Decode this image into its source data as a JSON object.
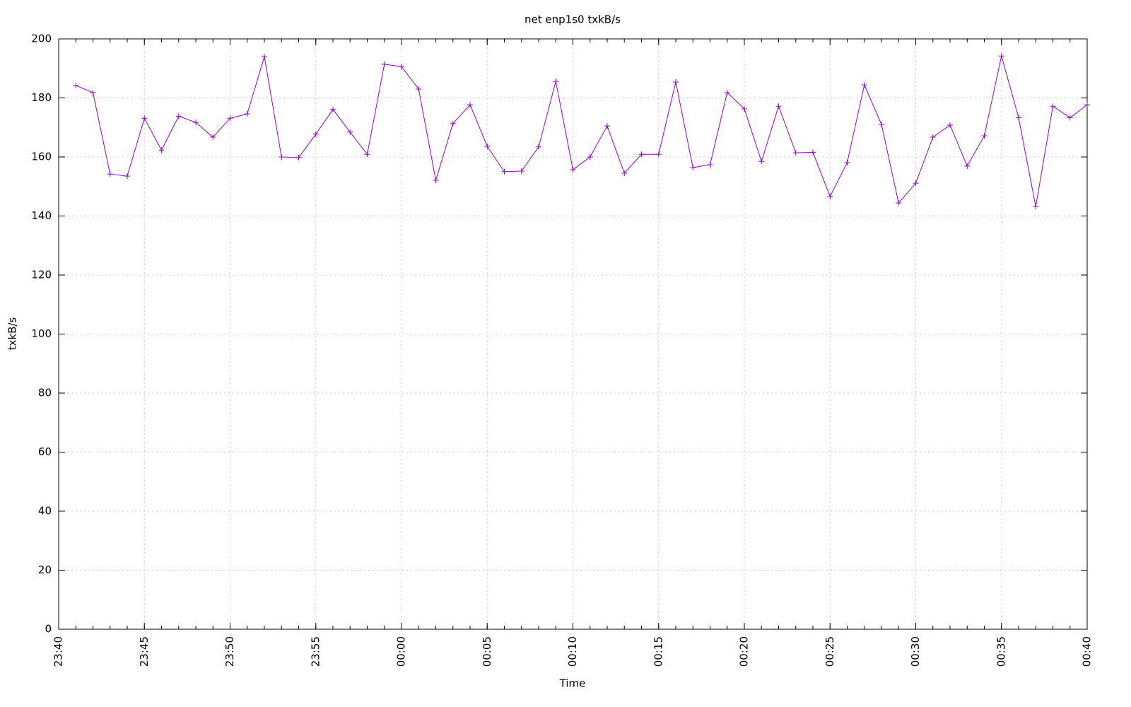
{
  "chart_data": {
    "type": "line",
    "title": "net enp1s0 txkB/s",
    "xlabel": "Time",
    "ylabel": "txkB/s",
    "x": [
      "23:41",
      "23:42",
      "23:43",
      "23:44",
      "23:45",
      "23:46",
      "23:47",
      "23:48",
      "23:49",
      "23:50",
      "23:51",
      "23:52",
      "23:53",
      "23:54",
      "23:55",
      "23:56",
      "23:57",
      "23:58",
      "23:59",
      "00:00",
      "00:01",
      "00:02",
      "00:03",
      "00:04",
      "00:05",
      "00:06",
      "00:07",
      "00:08",
      "00:09",
      "00:10",
      "00:11",
      "00:12",
      "00:13",
      "00:14",
      "00:15",
      "00:16",
      "00:17",
      "00:18",
      "00:19",
      "00:20",
      "00:21",
      "00:22",
      "00:23",
      "00:24",
      "00:25",
      "00:26",
      "00:27",
      "00:28",
      "00:29",
      "00:30",
      "00:31",
      "00:32",
      "00:33",
      "00:34",
      "00:35",
      "00:36",
      "00:37",
      "00:38",
      "00:39",
      "00:40"
    ],
    "series": [
      {
        "color": "#9400d3",
        "marker": "+",
        "values": [
          184.2,
          181.8,
          154.2,
          153.5,
          173.1,
          162.3,
          173.8,
          171.7,
          166.7,
          173.1,
          174.6,
          194.0,
          160.0,
          159.8,
          167.7,
          176.1,
          168.4,
          160.9,
          191.4,
          190.6,
          183.0,
          152.1,
          171.3,
          177.7,
          163.6,
          155.0,
          155.2,
          163.4,
          185.6,
          155.7,
          160.0,
          170.5,
          154.5,
          160.9,
          160.9,
          185.4,
          156.4,
          157.4,
          181.8,
          176.3,
          158.5,
          177.2,
          161.4,
          161.6,
          146.6,
          158.1,
          184.4,
          171.0,
          144.4,
          151.1,
          166.7,
          170.8,
          156.9,
          167.2,
          194.2,
          173.3,
          143.2,
          177.2,
          173.3,
          177.7
        ]
      }
    ],
    "xlim": [
      "23:40",
      "00:40"
    ],
    "xticks": [
      "23:40",
      "23:45",
      "23:50",
      "23:55",
      "00:00",
      "00:05",
      "00:10",
      "00:15",
      "00:20",
      "00:25",
      "00:30",
      "00:35",
      "00:40"
    ],
    "ylim": [
      0,
      200
    ],
    "yticks": [
      0,
      20,
      40,
      60,
      80,
      100,
      120,
      140,
      160,
      180,
      200
    ],
    "grid": true
  }
}
